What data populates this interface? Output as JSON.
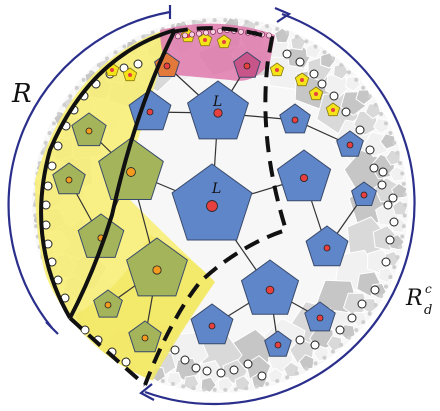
{
  "labels": {
    "region_r": "R",
    "center_upper": "L",
    "center_main": "L",
    "complement_base": "R",
    "complement_sub": "d",
    "complement_sup": "c"
  },
  "colors": {
    "background": "#ffffff",
    "tile_light": "#f1f1f1",
    "tile_mid": "#d9d9d9",
    "tile_dark": "#c6c6c6",
    "left_region": "#f7ef7a",
    "left_pentagon": "#a3b45a",
    "left_node": "#f39a1f",
    "top_region": "#e07fb0",
    "top_pentagon": "#c7558a",
    "center_pentagon": "#5f86c9",
    "center_node": "#e8403f",
    "leaf_node": "#ffffff",
    "star_node": "#f5e31a",
    "arc_stroke": "#2b2f8c",
    "boundary_stroke": "#111111"
  },
  "icons": {
    "pentagon": "pentagon-shape",
    "node": "circle-node"
  }
}
